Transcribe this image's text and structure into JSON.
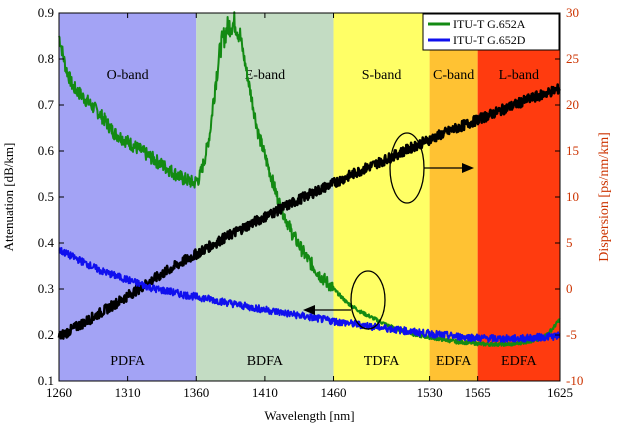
{
  "chart_data": {
    "type": "line",
    "xlabel": "Wavelength [nm]",
    "ylabel": "Attenuation [dB/km]",
    "y2label": "Dispersion [ps/nm/km]",
    "xlim": [
      1260,
      1625
    ],
    "ylim": [
      0.1,
      0.9
    ],
    "y2lim": [
      -10,
      30
    ],
    "x_ticks": [
      "1260",
      "1310",
      "1360",
      "1410",
      "1460",
      "1530",
      "1565",
      "1625"
    ],
    "y_ticks": [
      "0.1",
      "0.2",
      "0.3",
      "0.4",
      "0.5",
      "0.6",
      "0.7",
      "0.8",
      "0.9"
    ],
    "y2_ticks": [
      "-10",
      "-5",
      "0",
      "5",
      "10",
      "15",
      "20",
      "25",
      "30"
    ],
    "bands": [
      {
        "name": "O-band",
        "amplifier": "PDFA",
        "range": [
          1260,
          1360
        ],
        "color": "#a3a3f5"
      },
      {
        "name": "E-band",
        "amplifier": "BDFA",
        "range": [
          1360,
          1460
        ],
        "color": "#c3dcc3"
      },
      {
        "name": "S-band",
        "amplifier": "TDFA",
        "range": [
          1460,
          1530
        ],
        "color": "#ffff66"
      },
      {
        "name": "C-band",
        "amplifier": "EDFA",
        "range": [
          1530,
          1565
        ],
        "color": "#ffc233"
      },
      {
        "name": "L-band",
        "amplifier": "EDFA",
        "range": [
          1565,
          1625
        ],
        "color": "#ff3b0f"
      }
    ],
    "series": [
      {
        "name": "ITU-T G.652A",
        "axis": "left",
        "color": "#138a13",
        "x": [
          1260,
          1265,
          1270,
          1280,
          1290,
          1300,
          1310,
          1320,
          1330,
          1340,
          1350,
          1355,
          1358,
          1362,
          1366,
          1370,
          1374,
          1378,
          1383,
          1388,
          1392,
          1395,
          1400,
          1405,
          1410,
          1420,
          1430,
          1440,
          1450,
          1460,
          1470,
          1480,
          1490,
          1500,
          1510,
          1520,
          1530,
          1540,
          1550,
          1560,
          1570,
          1580,
          1590,
          1600,
          1610,
          1615,
          1620,
          1625
        ],
        "y": [
          0.85,
          0.78,
          0.74,
          0.71,
          0.68,
          0.64,
          0.62,
          0.6,
          0.58,
          0.56,
          0.54,
          0.535,
          0.53,
          0.54,
          0.58,
          0.64,
          0.75,
          0.83,
          0.87,
          0.88,
          0.85,
          0.8,
          0.72,
          0.64,
          0.59,
          0.49,
          0.42,
          0.37,
          0.33,
          0.3,
          0.27,
          0.25,
          0.235,
          0.22,
          0.21,
          0.2,
          0.195,
          0.19,
          0.185,
          0.183,
          0.18,
          0.18,
          0.18,
          0.185,
          0.19,
          0.2,
          0.215,
          0.235
        ]
      },
      {
        "name": "ITU-T G.652D",
        "axis": "left",
        "color": "#1010ee",
        "x": [
          1260,
          1270,
          1280,
          1290,
          1300,
          1310,
          1320,
          1330,
          1340,
          1350,
          1360,
          1370,
          1380,
          1390,
          1400,
          1410,
          1420,
          1430,
          1440,
          1450,
          1460,
          1470,
          1480,
          1490,
          1500,
          1510,
          1520,
          1530,
          1540,
          1550,
          1560,
          1570,
          1580,
          1590,
          1600,
          1610,
          1620,
          1625
        ],
        "y": [
          0.385,
          0.37,
          0.355,
          0.34,
          0.33,
          0.32,
          0.31,
          0.3,
          0.295,
          0.288,
          0.283,
          0.278,
          0.272,
          0.266,
          0.26,
          0.255,
          0.25,
          0.245,
          0.24,
          0.235,
          0.23,
          0.226,
          0.222,
          0.218,
          0.214,
          0.21,
          0.206,
          0.203,
          0.2,
          0.197,
          0.195,
          0.193,
          0.192,
          0.192,
          0.193,
          0.195,
          0.197,
          0.198
        ]
      },
      {
        "name": "Dispersion",
        "axis": "right",
        "color": "#000000",
        "x": [
          1260,
          1280,
          1300,
          1320,
          1340,
          1360,
          1380,
          1400,
          1420,
          1440,
          1460,
          1480,
          1500,
          1520,
          1540,
          1560,
          1580,
          1600,
          1625
        ],
        "y": [
          -5.2,
          -3.5,
          -1.7,
          0.2,
          2.1,
          3.8,
          5.5,
          7.1,
          8.6,
          10.1,
          11.5,
          12.9,
          14.2,
          15.6,
          16.9,
          18.1,
          19.3,
          20.5,
          21.8
        ]
      }
    ],
    "legend": {
      "position": "top-right",
      "entries": [
        "ITU-T G.652A",
        "ITU-T G.652D"
      ]
    },
    "annotations": [
      {
        "type": "ellipse-arrow",
        "target": "Dispersion",
        "direction": "right"
      },
      {
        "type": "ellipse-arrow",
        "target": "ITU-T G.652D",
        "direction": "left"
      }
    ],
    "grid": false
  }
}
